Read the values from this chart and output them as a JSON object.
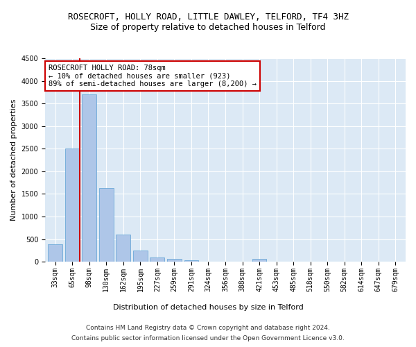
{
  "title": "ROSECROFT, HOLLY ROAD, LITTLE DAWLEY, TELFORD, TF4 3HZ",
  "subtitle": "Size of property relative to detached houses in Telford",
  "xlabel": "Distribution of detached houses by size in Telford",
  "ylabel": "Number of detached properties",
  "categories": [
    "33sqm",
    "65sqm",
    "98sqm",
    "130sqm",
    "162sqm",
    "195sqm",
    "227sqm",
    "259sqm",
    "291sqm",
    "324sqm",
    "356sqm",
    "388sqm",
    "421sqm",
    "453sqm",
    "485sqm",
    "518sqm",
    "550sqm",
    "582sqm",
    "614sqm",
    "647sqm",
    "679sqm"
  ],
  "values": [
    380,
    2510,
    3700,
    1630,
    600,
    240,
    100,
    60,
    40,
    0,
    0,
    0,
    60,
    0,
    0,
    0,
    0,
    0,
    0,
    0,
    0
  ],
  "bar_color": "#aec6e8",
  "bar_edge_color": "#5a9fd4",
  "ylim": [
    0,
    4500
  ],
  "yticks": [
    0,
    500,
    1000,
    1500,
    2000,
    2500,
    3000,
    3500,
    4000,
    4500
  ],
  "property_line_color": "#cc0000",
  "annotation_text": "ROSECROFT HOLLY ROAD: 78sqm\n← 10% of detached houses are smaller (923)\n89% of semi-detached houses are larger (8,200) →",
  "annotation_box_color": "#ffffff",
  "annotation_box_edge": "#cc0000",
  "footer_line1": "Contains HM Land Registry data © Crown copyright and database right 2024.",
  "footer_line2": "Contains public sector information licensed under the Open Government Licence v3.0.",
  "plot_bg_color": "#dce9f5",
  "title_fontsize": 9,
  "subtitle_fontsize": 9,
  "tick_fontsize": 7,
  "axis_label_fontsize": 8,
  "footer_fontsize": 6.5
}
